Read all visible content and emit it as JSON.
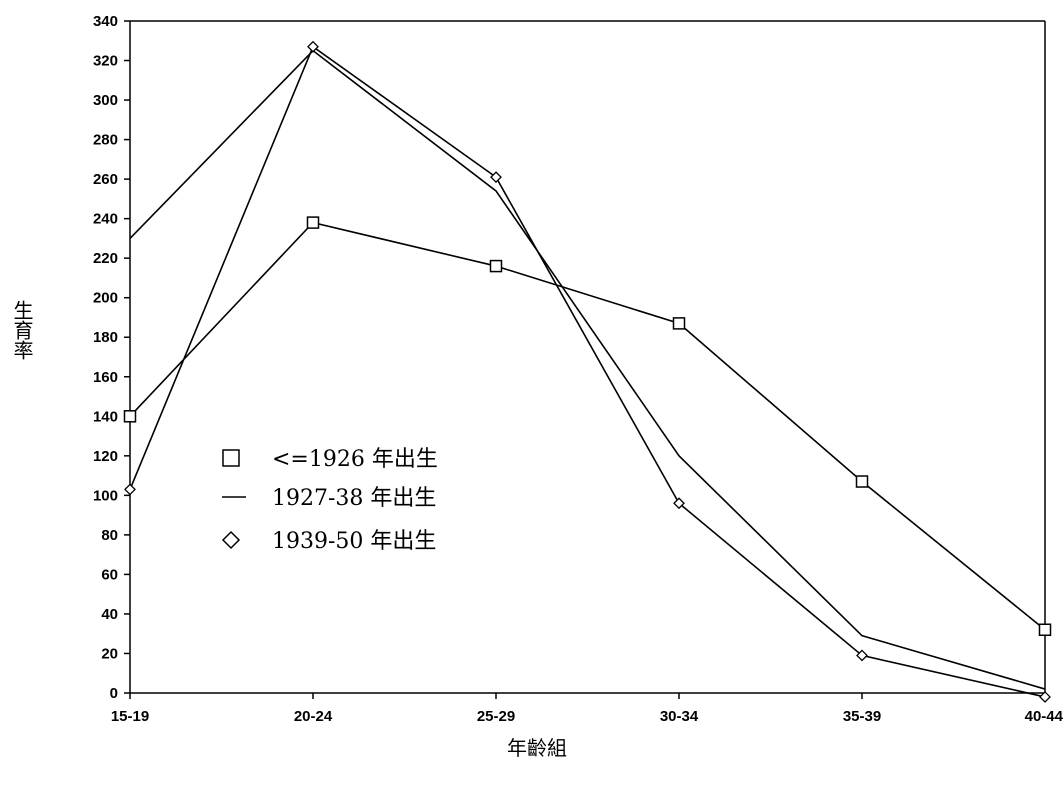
{
  "chart_data": {
    "type": "line",
    "title": "",
    "xlabel": "年齡組",
    "ylabel": "生育率",
    "categories": [
      "15-19",
      "20-24",
      "25-29",
      "30-34",
      "35-39",
      "40-44"
    ],
    "ylim": [
      0,
      340
    ],
    "yticks": [
      0,
      20,
      40,
      60,
      80,
      100,
      120,
      140,
      160,
      180,
      200,
      220,
      240,
      260,
      280,
      300,
      320,
      340
    ],
    "grid": false,
    "legend_position": "center-left",
    "series": [
      {
        "name": "<=1926 年出生",
        "marker": "square",
        "values": [
          140,
          238,
          216,
          187,
          107,
          32
        ]
      },
      {
        "name": "1927-38 年出生",
        "marker": "none",
        "values": [
          230,
          325,
          254,
          120,
          29,
          2
        ]
      },
      {
        "name": "1939-50 年出生",
        "marker": "diamond",
        "values": [
          103,
          327,
          261,
          96,
          19,
          -2
        ]
      }
    ]
  },
  "legend": {
    "entries": [
      {
        "label": "<=1926 年出生",
        "icon": "square-marker-icon"
      },
      {
        "label": "1927-38 年出生",
        "icon": "line-marker-icon"
      },
      {
        "label": "1939-50 年出生",
        "icon": "diamond-marker-icon"
      }
    ]
  }
}
